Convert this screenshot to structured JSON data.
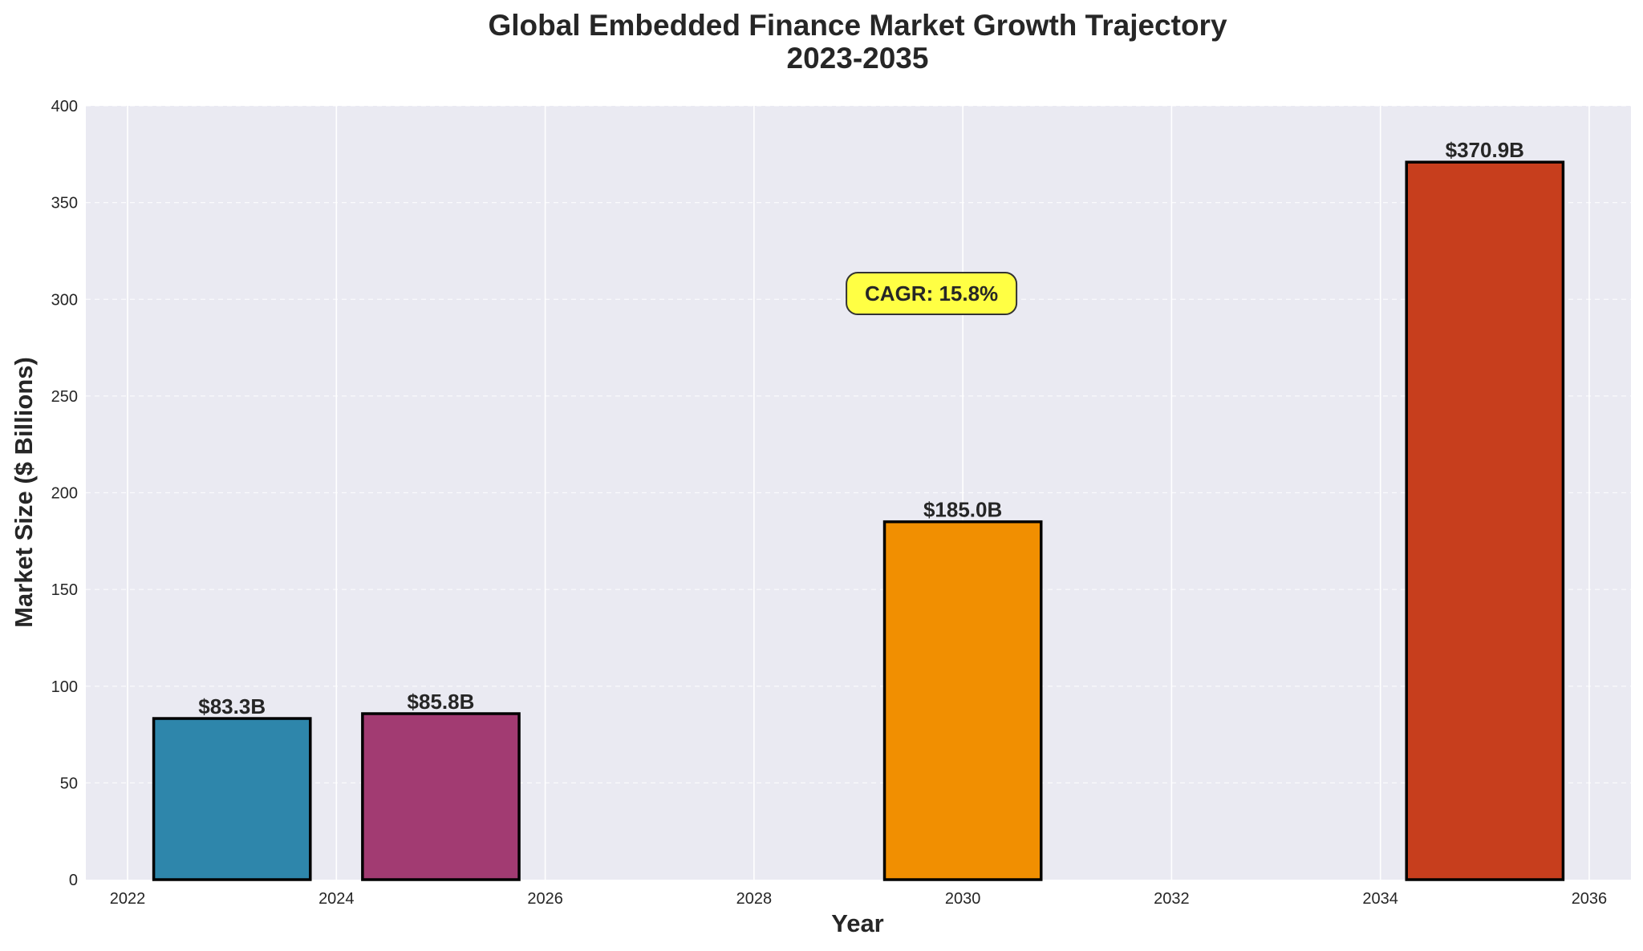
{
  "chart_data": {
    "type": "bar",
    "title": "Global Embedded Finance Market Growth Trajectory",
    "subtitle": "2023-2035",
    "xlabel": "Year",
    "ylabel": "Market Size ($ Billions)",
    "x": [
      2023,
      2025,
      2030,
      2035
    ],
    "values": [
      83.3,
      85.8,
      185.0,
      370.9
    ],
    "value_labels": [
      "$83.3B",
      "$85.8B",
      "$185.0B",
      "$370.9B"
    ],
    "colors": [
      "#2e86ab",
      "#a23b72",
      "#f18f01",
      "#c73e1d"
    ],
    "bar_width_years": 1.5,
    "xlim": [
      2021.6,
      2036.4
    ],
    "ylim": [
      0,
      400
    ],
    "xticks": [
      2022,
      2024,
      2026,
      2028,
      2030,
      2032,
      2034,
      2036
    ],
    "yticks": [
      0,
      50,
      100,
      150,
      200,
      250,
      300,
      350,
      400
    ],
    "grid": true,
    "annotation": {
      "text": "CAGR: 15.8%",
      "x": 2029.7,
      "y": 303,
      "box_color": "#ffff44"
    },
    "background_color": "#eaeaf2",
    "edge_color": "#000000"
  }
}
